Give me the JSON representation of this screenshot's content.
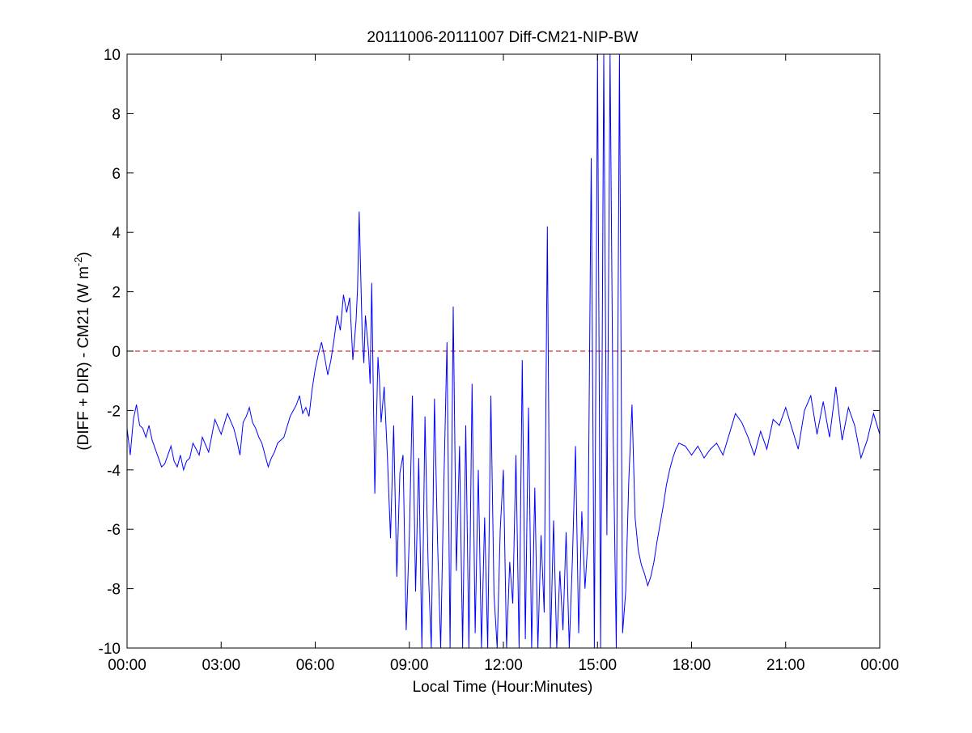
{
  "chart_data": {
    "type": "line",
    "title": "20111006-20111007 Diff-CM21-NIP-BW",
    "xlabel": "Local Time (Hour:Minutes)",
    "ylabel": {
      "main": "(DIFF + DIR) - CM21 (W m",
      "superscript": "-2",
      "close": ")"
    },
    "xlim": [
      "00:00",
      "24:00"
    ],
    "ylim": [
      -10,
      10
    ],
    "x_ticks": [
      "00:00",
      "03:00",
      "06:00",
      "09:00",
      "12:00",
      "15:00",
      "18:00",
      "21:00",
      "00:00"
    ],
    "y_ticks": [
      "10",
      "8",
      "6",
      "4",
      "2",
      "0",
      "-2",
      "-4",
      "-6",
      "-8",
      "-10"
    ],
    "grid": false,
    "reference_line": {
      "y": 0,
      "style": "dashed",
      "color": "#cc0000"
    },
    "series": [
      {
        "color": "#0000ff",
        "x_hours": [
          0.0,
          0.1,
          0.2,
          0.3,
          0.4,
          0.5,
          0.6,
          0.7,
          0.8,
          0.9,
          1.0,
          1.1,
          1.2,
          1.4,
          1.5,
          1.6,
          1.7,
          1.8,
          1.9,
          2.0,
          2.1,
          2.2,
          2.3,
          2.4,
          2.6,
          2.8,
          3.0,
          3.2,
          3.4,
          3.5,
          3.6,
          3.7,
          3.8,
          3.9,
          4.0,
          4.1,
          4.2,
          4.3,
          4.4,
          4.5,
          4.6,
          4.7,
          4.8,
          5.0,
          5.2,
          5.4,
          5.5,
          5.6,
          5.7,
          5.8,
          5.9,
          6.0,
          6.1,
          6.2,
          6.3,
          6.4,
          6.5,
          6.6,
          6.7,
          6.8,
          6.9,
          7.0,
          7.1,
          7.2,
          7.3,
          7.35,
          7.4,
          7.5,
          7.55,
          7.6,
          7.7,
          7.75,
          7.8,
          7.9,
          8.0,
          8.05,
          8.1,
          8.2,
          8.3,
          8.4,
          8.5,
          8.6,
          8.7,
          8.8,
          8.9,
          9.0,
          9.1,
          9.2,
          9.3,
          9.4,
          9.5,
          9.6,
          9.7,
          9.8,
          9.9,
          10.0,
          10.1,
          10.2,
          10.3,
          10.4,
          10.5,
          10.6,
          10.7,
          10.8,
          10.9,
          11.0,
          11.1,
          11.2,
          11.3,
          11.4,
          11.5,
          11.6,
          11.7,
          11.8,
          11.9,
          12.0,
          12.1,
          12.2,
          12.3,
          12.4,
          12.5,
          12.6,
          12.7,
          12.8,
          12.9,
          13.0,
          13.1,
          13.2,
          13.3,
          13.4,
          13.5,
          13.6,
          13.7,
          13.8,
          13.9,
          14.0,
          14.1,
          14.2,
          14.3,
          14.4,
          14.5,
          14.6,
          14.7,
          14.8,
          14.9,
          15.0,
          15.1,
          15.2,
          15.3,
          15.4,
          15.5,
          15.6,
          15.7,
          15.8,
          15.9,
          16.0,
          16.1,
          16.2,
          16.3,
          16.4,
          16.5,
          16.6,
          16.7,
          16.8,
          16.9,
          17.0,
          17.1,
          17.2,
          17.3,
          17.4,
          17.5,
          17.6,
          17.8,
          18.0,
          18.2,
          18.4,
          18.6,
          18.8,
          19.0,
          19.2,
          19.4,
          19.6,
          19.8,
          20.0,
          20.2,
          20.4,
          20.6,
          20.8,
          21.0,
          21.2,
          21.4,
          21.6,
          21.8,
          22.0,
          22.2,
          22.4,
          22.6,
          22.8,
          23.0,
          23.2,
          23.4,
          23.6,
          23.8,
          24.0
        ],
        "y": [
          -2.6,
          -3.5,
          -2.3,
          -1.8,
          -2.5,
          -2.6,
          -2.9,
          -2.5,
          -3.0,
          -3.3,
          -3.6,
          -3.9,
          -3.8,
          -3.2,
          -3.7,
          -3.9,
          -3.5,
          -4.0,
          -3.7,
          -3.6,
          -3.1,
          -3.3,
          -3.5,
          -2.9,
          -3.4,
          -2.3,
          -2.8,
          -2.1,
          -2.6,
          -3.0,
          -3.5,
          -2.4,
          -2.2,
          -1.9,
          -2.4,
          -2.6,
          -2.9,
          -3.1,
          -3.5,
          -3.9,
          -3.6,
          -3.4,
          -3.1,
          -2.9,
          -2.2,
          -1.8,
          -1.5,
          -2.1,
          -1.9,
          -2.2,
          -1.3,
          -0.6,
          -0.1,
          0.3,
          -0.2,
          -0.8,
          -0.3,
          0.4,
          1.2,
          0.7,
          1.9,
          1.3,
          1.8,
          -0.3,
          1.0,
          2.1,
          4.7,
          0.5,
          -0.4,
          1.2,
          0.0,
          -1.1,
          2.3,
          -4.8,
          -0.2,
          -1.0,
          -2.4,
          -1.2,
          -3.5,
          -6.3,
          -2.5,
          -7.6,
          -4.1,
          -3.5,
          -9.4,
          -6.2,
          -1.5,
          -8.1,
          -3.6,
          -10.0,
          -2.2,
          -7.2,
          -10.0,
          -1.6,
          -6.4,
          -10.0,
          -4.5,
          0.3,
          -10.0,
          1.5,
          -7.4,
          -3.2,
          -10.0,
          -2.5,
          -10.0,
          -1.1,
          -9.5,
          -4.0,
          -10.0,
          -5.6,
          -10.0,
          -1.5,
          -8.2,
          -10.0,
          -6.0,
          -4.0,
          -10.0,
          -7.1,
          -8.5,
          -3.5,
          -10.0,
          -0.3,
          -9.7,
          -1.9,
          -10.0,
          -4.6,
          -10.0,
          -6.2,
          -8.8,
          4.2,
          -10.0,
          -5.7,
          -10.0,
          -7.4,
          -9.4,
          -6.1,
          -10.0,
          -7.0,
          -3.2,
          -9.5,
          -5.4,
          -8.0,
          -6.3,
          6.5,
          -10.0,
          10.0,
          -10.0,
          10.0,
          -6.2,
          10.0,
          -2.7,
          -10.0,
          10.0,
          -9.5,
          -8.1,
          -4.3,
          -1.8,
          -5.6,
          -6.7,
          -7.2,
          -7.5,
          -7.9,
          -7.6,
          -7.1,
          -6.4,
          -5.8,
          -5.2,
          -4.5,
          -4.0,
          -3.6,
          -3.3,
          -3.1,
          -3.2,
          -3.5,
          -3.2,
          -3.6,
          -3.3,
          -3.1,
          -3.5,
          -2.8,
          -2.1,
          -2.4,
          -2.9,
          -3.5,
          -2.7,
          -3.3,
          -2.3,
          -2.5,
          -1.9,
          -2.6,
          -3.3,
          -2.0,
          -1.5,
          -2.8,
          -1.7,
          -2.9,
          -1.2,
          -3.0,
          -1.9,
          -2.5,
          -3.6,
          -3.0,
          -2.1,
          -2.8
        ]
      }
    ]
  }
}
